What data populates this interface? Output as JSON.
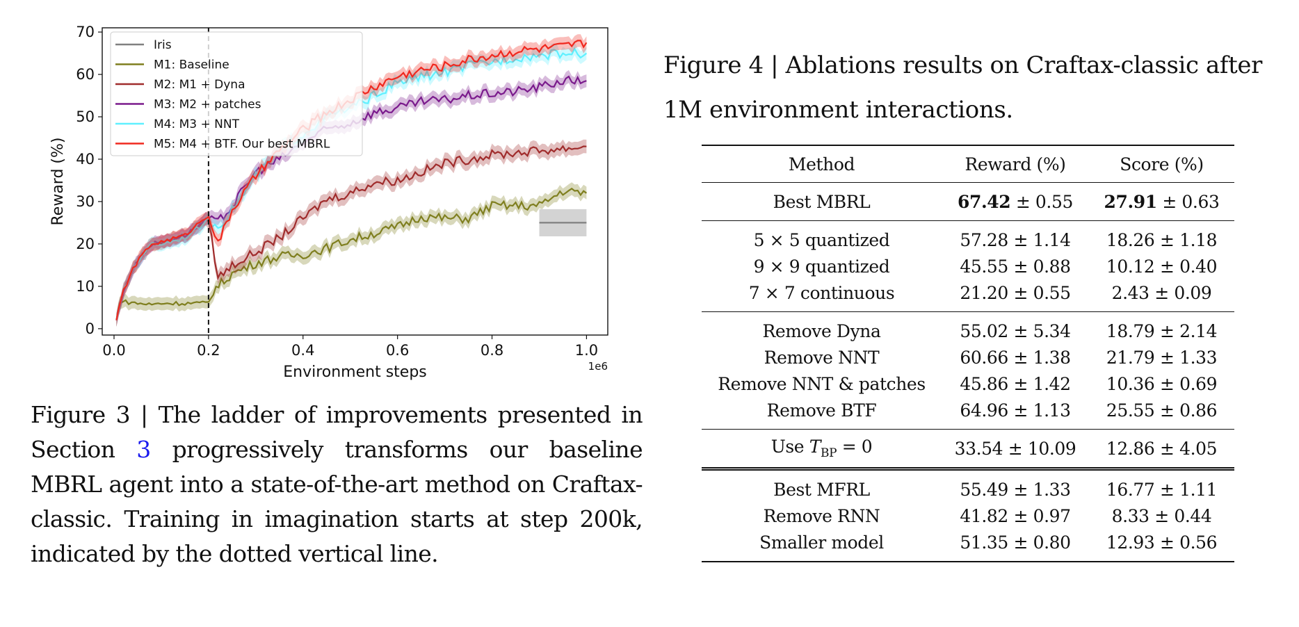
{
  "chart_data": {
    "type": "line",
    "xlabel": "Environment steps",
    "ylabel": "Reward (%)",
    "x_offset_label": "1e6",
    "xlim": [
      -0.025,
      1.045
    ],
    "ylim": [
      -1.5,
      71
    ],
    "xticks": [
      0.0,
      0.2,
      0.4,
      0.6,
      0.8,
      1.0
    ],
    "xtick_labels": [
      "0.0",
      "0.2",
      "0.4",
      "0.6",
      "0.8",
      "1.0"
    ],
    "yticks": [
      0,
      10,
      20,
      30,
      40,
      50,
      60,
      70
    ],
    "ytick_labels": [
      "0",
      "10",
      "20",
      "30",
      "40",
      "50",
      "60",
      "70"
    ],
    "vline": {
      "x": 0.2,
      "style": "dashed"
    },
    "legend_position": "top-left",
    "series": [
      {
        "name": "Iris",
        "color": "#808080",
        "x": [
          0.9,
          1.0
        ],
        "y": [
          25,
          25
        ],
        "band": 3.2
      },
      {
        "name": "M1: Baseline",
        "color": "#7f7f1f",
        "x": [
          0.005,
          0.012,
          0.05,
          0.08,
          0.1,
          0.15,
          0.2,
          0.21,
          0.25,
          0.3,
          0.35,
          0.4,
          0.45,
          0.5,
          0.55,
          0.6,
          0.65,
          0.7,
          0.75,
          0.8,
          0.85,
          0.9,
          0.95,
          1.0
        ],
        "y": [
          2,
          6.5,
          6,
          5.7,
          6,
          6,
          6,
          9,
          13,
          15.5,
          17,
          17.5,
          19,
          21,
          22.5,
          24,
          26.5,
          26,
          26,
          29,
          29,
          29,
          32.5,
          32
        ],
        "band": 1.5
      },
      {
        "name": "M2: M1 + Dyna",
        "color": "#a02c2c",
        "x": [
          0.005,
          0.02,
          0.04,
          0.06,
          0.08,
          0.1,
          0.15,
          0.2,
          0.22,
          0.25,
          0.3,
          0.35,
          0.4,
          0.45,
          0.5,
          0.55,
          0.6,
          0.65,
          0.7,
          0.75,
          0.8,
          0.85,
          0.9,
          0.95,
          1.0
        ],
        "y": [
          2,
          9,
          14,
          17.5,
          20,
          20.5,
          22,
          26,
          12,
          15,
          18,
          21.5,
          26,
          30.5,
          32,
          34.5,
          35,
          37,
          39,
          40,
          41,
          41.5,
          42,
          42.5,
          43
        ],
        "band": 1.6
      },
      {
        "name": "M3: M2 + patches",
        "color": "#7a1a8c",
        "x": [
          0.005,
          0.02,
          0.04,
          0.06,
          0.08,
          0.1,
          0.15,
          0.2,
          0.22,
          0.25,
          0.3,
          0.35,
          0.4,
          0.45,
          0.5,
          0.55,
          0.6,
          0.65,
          0.7,
          0.75,
          0.8,
          0.85,
          0.9,
          0.95,
          1.0
        ],
        "y": [
          2,
          9,
          14,
          17.5,
          20,
          20.5,
          22,
          26,
          25,
          29,
          37,
          40,
          44,
          47,
          48.5,
          51,
          52,
          53.5,
          54,
          55,
          55.5,
          56,
          57,
          58.5,
          58.5
        ],
        "band": 1.5
      },
      {
        "name": "M4: M3 + NNT",
        "color": "#5ff0ff",
        "x": [
          0.005,
          0.02,
          0.04,
          0.06,
          0.08,
          0.1,
          0.15,
          0.2,
          0.22,
          0.25,
          0.3,
          0.35,
          0.4,
          0.45,
          0.5,
          0.55,
          0.6,
          0.65,
          0.7,
          0.75,
          0.8,
          0.85,
          0.9,
          0.95,
          1.0
        ],
        "y": [
          2,
          9,
          14,
          17.5,
          20,
          20,
          21.5,
          25.5,
          24,
          28,
          36,
          42,
          46,
          50,
          52,
          55,
          58,
          59.5,
          60.5,
          62,
          63,
          64,
          64.5,
          65,
          65
        ],
        "band": 1.5
      },
      {
        "name": "M5: M4 + BTF. Our best MBRL",
        "color": "#f0281e",
        "x": [
          0.005,
          0.02,
          0.04,
          0.06,
          0.08,
          0.1,
          0.15,
          0.2,
          0.22,
          0.25,
          0.3,
          0.35,
          0.4,
          0.45,
          0.5,
          0.55,
          0.6,
          0.65,
          0.7,
          0.75,
          0.8,
          0.85,
          0.9,
          0.95,
          1.0
        ],
        "y": [
          2,
          9,
          14,
          17.5,
          20,
          20.5,
          22,
          27,
          20,
          28,
          36,
          42,
          47,
          51,
          54,
          57,
          59.5,
          61,
          62,
          63.5,
          64.5,
          65.5,
          66,
          66.5,
          67.5
        ],
        "band": 1.5
      }
    ]
  },
  "fig3_caption": {
    "prefix": "Figure 3 | The ladder of improvements presented in Section ",
    "ref": "3",
    "suffix": " progressively transforms our baseline MBRL agent into a state-of-the-art method on Craftax-classic. Training in imagination starts at step 200k, indicated by the dotted vertical line."
  },
  "fig4_caption": "Figure 4 | Ablations results on Craftax-classic after 1M environment interactions.",
  "table": {
    "headers": [
      "Method",
      "Reward (%)",
      "Score (%)"
    ],
    "best": {
      "method": "Best MBRL",
      "reward_bold": "67.42",
      "reward_err": " ± 0.55",
      "score_bold": "27.91",
      "score_err": " ± 0.63"
    },
    "group_patch": [
      [
        "5 × 5 quantized",
        "57.28 ± 1.14",
        "18.26 ± 1.18"
      ],
      [
        "9 × 9 quantized",
        "45.55 ± 0.88",
        "10.12 ± 0.40"
      ],
      [
        "7 × 7 continuous",
        "21.20 ± 0.55",
        "2.43 ± 0.09"
      ]
    ],
    "group_remove": [
      [
        "Remove Dyna",
        "55.02 ± 5.34",
        "18.79 ± 2.14"
      ],
      [
        "Remove NNT",
        "60.66 ± 1.38",
        "21.79 ± 1.33"
      ],
      [
        "Remove NNT & patches",
        "45.86 ± 1.42",
        "10.36 ± 0.69"
      ],
      [
        "Remove BTF",
        "64.96 ± 1.13",
        "25.55 ± 0.86"
      ]
    ],
    "tbp": {
      "prefix": "Use ",
      "var": "T",
      "sub": "BP",
      "suffix": " = 0",
      "reward": "33.54 ± 10.09",
      "score": "12.86 ± 4.05"
    },
    "group_mfrl": [
      [
        "Best MFRL",
        "55.49 ± 1.33",
        "16.77 ± 1.11"
      ],
      [
        "Remove RNN",
        "41.82 ± 0.97",
        "8.33 ± 0.44"
      ],
      [
        "Smaller model",
        "51.35 ± 0.80",
        "12.93 ± 0.56"
      ]
    ]
  }
}
